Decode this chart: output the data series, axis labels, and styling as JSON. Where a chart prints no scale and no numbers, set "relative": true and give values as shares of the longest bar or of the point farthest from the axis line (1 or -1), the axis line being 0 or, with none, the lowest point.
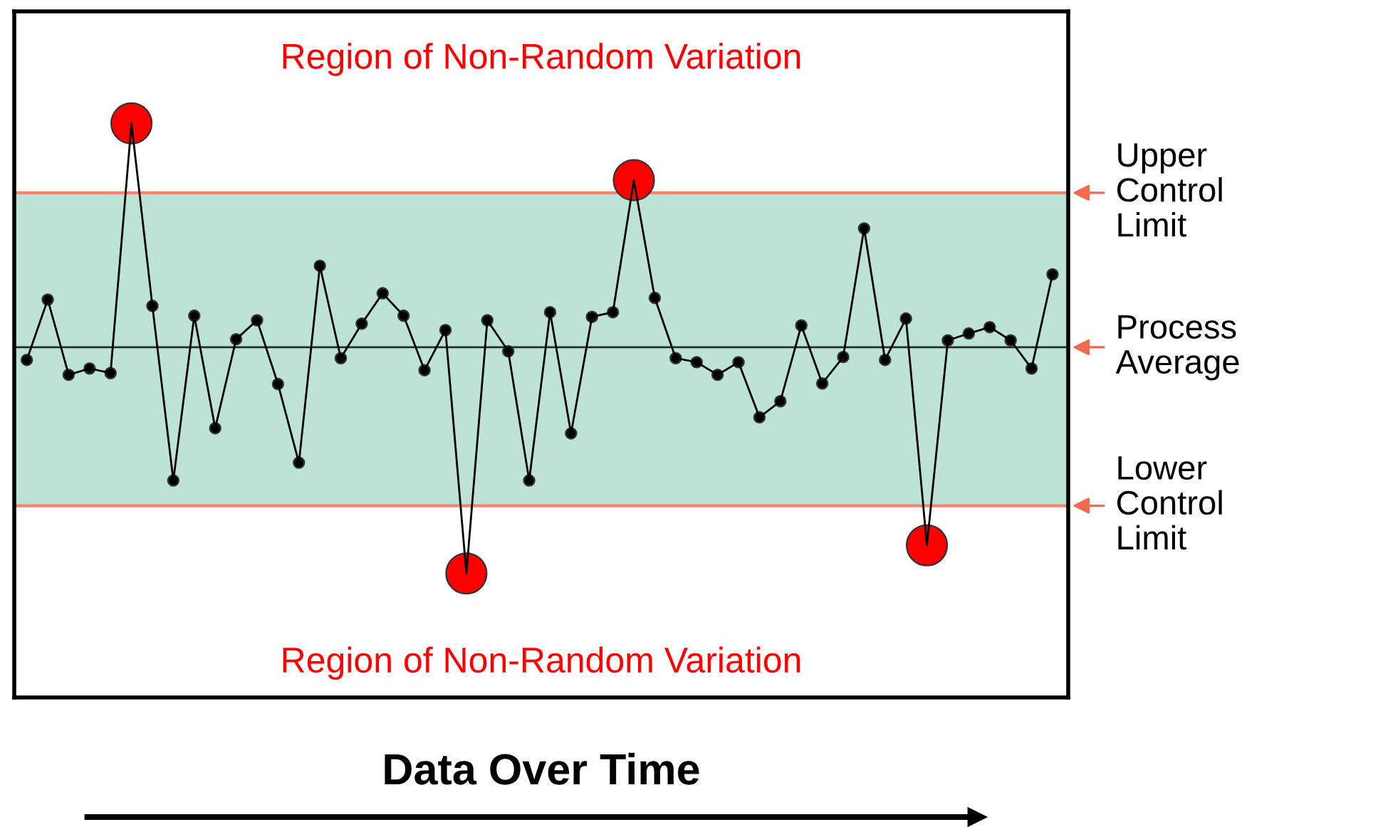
{
  "chart_data": {
    "type": "line",
    "relative": true,
    "xlabel": "Data Over Time",
    "categories": [
      null,
      null,
      null,
      null,
      null,
      null,
      null,
      null,
      null,
      null,
      null,
      null,
      null,
      null,
      null,
      null,
      null,
      null,
      null,
      null,
      null,
      null,
      null,
      null,
      null,
      null,
      null,
      null,
      null,
      null,
      null,
      null,
      null,
      null,
      null,
      null,
      null,
      null,
      null,
      null,
      null,
      null,
      null,
      null,
      null,
      null,
      null,
      null,
      null,
      null
    ],
    "series": [
      {
        "color": "#000000",
        "marker": "circle",
        "colors": [
          "#000000",
          "#000000",
          "#000000",
          "#000000",
          "#000000",
          "#ff0000",
          "#000000",
          "#000000",
          "#000000",
          "#000000",
          "#000000",
          "#000000",
          "#000000",
          "#000000",
          "#000000",
          "#000000",
          "#000000",
          "#000000",
          "#000000",
          "#000000",
          "#000000",
          "#ff0000",
          "#000000",
          "#000000",
          "#000000",
          "#000000",
          "#000000",
          "#000000",
          "#000000",
          "#ff0000",
          "#000000",
          "#000000",
          "#000000",
          "#000000",
          "#000000",
          "#000000",
          "#000000",
          "#000000",
          "#000000",
          "#000000",
          "#000000",
          "#000000",
          "#000000",
          "#ff0000",
          "#000000",
          "#000000",
          "#000000",
          "#000000",
          "#000000",
          "#000000"
        ],
        "values": [
          0.588,
          0.693,
          0.562,
          0.573,
          0.565,
          1.0,
          0.682,
          0.378,
          0.665,
          0.469,
          0.624,
          0.657,
          0.546,
          0.409,
          0.752,
          0.591,
          0.651,
          0.704,
          0.665,
          0.57,
          0.64,
          0.216,
          0.657,
          0.603,
          0.378,
          0.671,
          0.46,
          0.663,
          0.671,
          0.901,
          0.696,
          0.591,
          0.584,
          0.562,
          0.584,
          0.488,
          0.516,
          0.648,
          0.547,
          0.593,
          0.817,
          0.588,
          0.66,
          0.265,
          0.622,
          0.634,
          0.645,
          0.622,
          0.573,
          0.737
        ]
      }
    ],
    "ref_lines": [
      {
        "axis": "y",
        "value": 0.879,
        "label": "Upper\nControl\nLimit",
        "color": "#f4846c",
        "line_style": "solid"
      },
      {
        "axis": "y",
        "value": 0.61,
        "label": "Process\nAverage",
        "color": "#2a2a2a",
        "line_style": "solid"
      },
      {
        "axis": "y",
        "value": 0.334,
        "label": "Lower\nControl\nLimit",
        "color": "#f4846c",
        "line_style": "solid"
      }
    ],
    "bands": [
      {
        "axis": "y",
        "from": 0.334,
        "to": 0.879,
        "color": "#bde2d6"
      }
    ],
    "annotations": [
      "Region of Non-Random Variation",
      "Region of Non-Random Variation"
    ],
    "grid": false,
    "legend": false,
    "tick_labels": false
  }
}
